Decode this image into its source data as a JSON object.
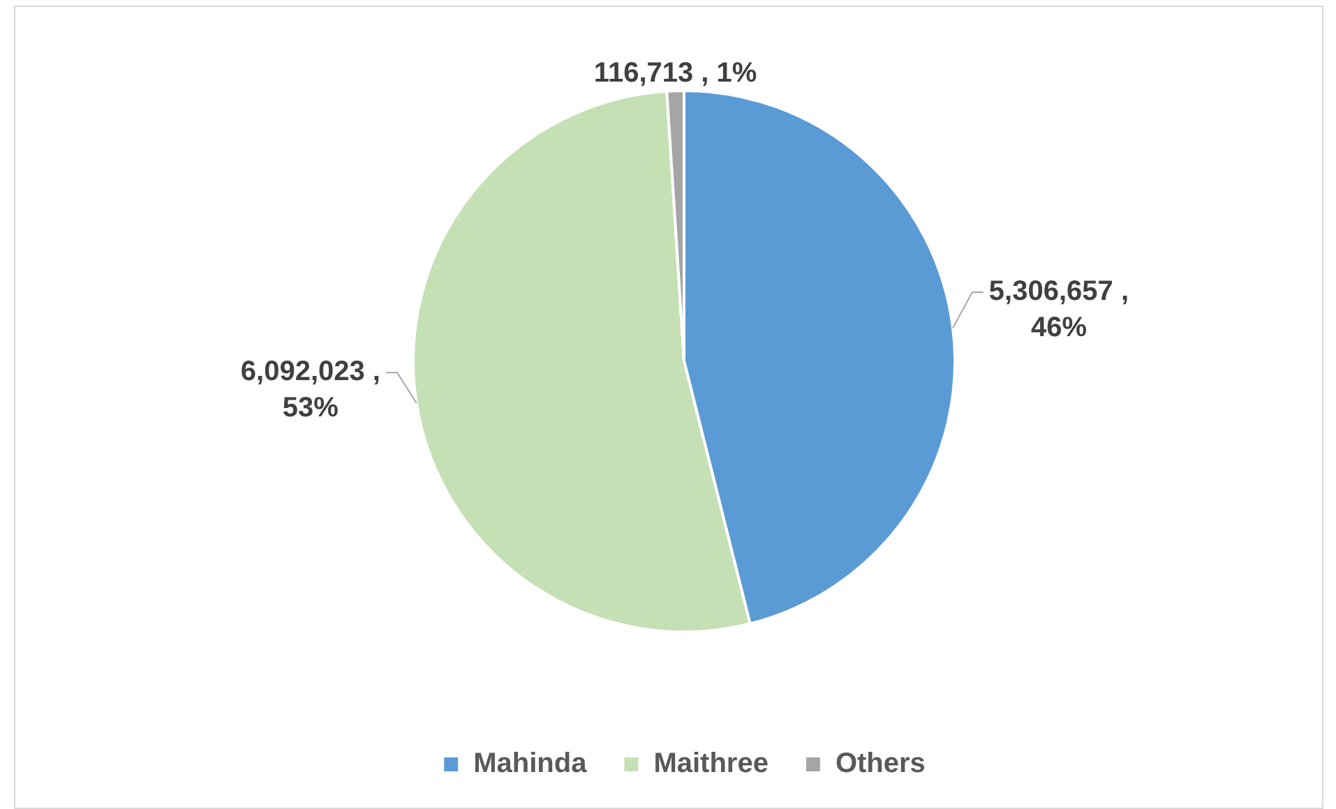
{
  "chart_data": {
    "type": "pie",
    "categories": [
      "Mahinda",
      "Maithree",
      "Others"
    ],
    "values": [
      5306657,
      6092023,
      116713
    ],
    "colors": [
      "#5b9bd5",
      "#c5e0b4",
      "#a5a5a5"
    ],
    "value_labels": [
      "5,306,657 , 46%",
      "6,092,023 , 53%",
      "116,713 , 1%"
    ],
    "legend": "bottom"
  }
}
